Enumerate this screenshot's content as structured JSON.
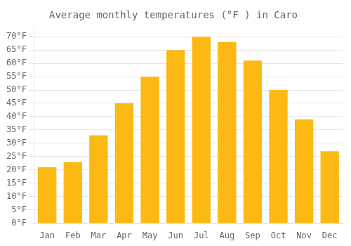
{
  "chart_data": {
    "type": "bar",
    "title": "Average monthly temperatures (°F ) in Caro",
    "categories": [
      "Jan",
      "Feb",
      "Mar",
      "Apr",
      "May",
      "Jun",
      "Jul",
      "Aug",
      "Sep",
      "Oct",
      "Nov",
      "Dec"
    ],
    "values": [
      21,
      23,
      33,
      45,
      55,
      65,
      70,
      68,
      61,
      50,
      39,
      27
    ],
    "color": "#FDB913",
    "ylim": [
      0,
      73
    ],
    "yticks": [
      {
        "value": 0,
        "label": "0°F"
      },
      {
        "value": 5,
        "label": "5°F"
      },
      {
        "value": 10,
        "label": "10°F"
      },
      {
        "value": 15,
        "label": "15°F"
      },
      {
        "value": 20,
        "label": "20°F"
      },
      {
        "value": 25,
        "label": "25°F"
      },
      {
        "value": 30,
        "label": "30°F"
      },
      {
        "value": 35,
        "label": "35°F"
      },
      {
        "value": 40,
        "label": "40°F"
      },
      {
        "value": 45,
        "label": "45°F"
      },
      {
        "value": 50,
        "label": "50°F"
      },
      {
        "value": 55,
        "label": "55°F"
      },
      {
        "value": 60,
        "label": "60°F"
      },
      {
        "value": 65,
        "label": "65°F"
      },
      {
        "value": 70,
        "label": "70°F"
      }
    ],
    "grid": true
  }
}
